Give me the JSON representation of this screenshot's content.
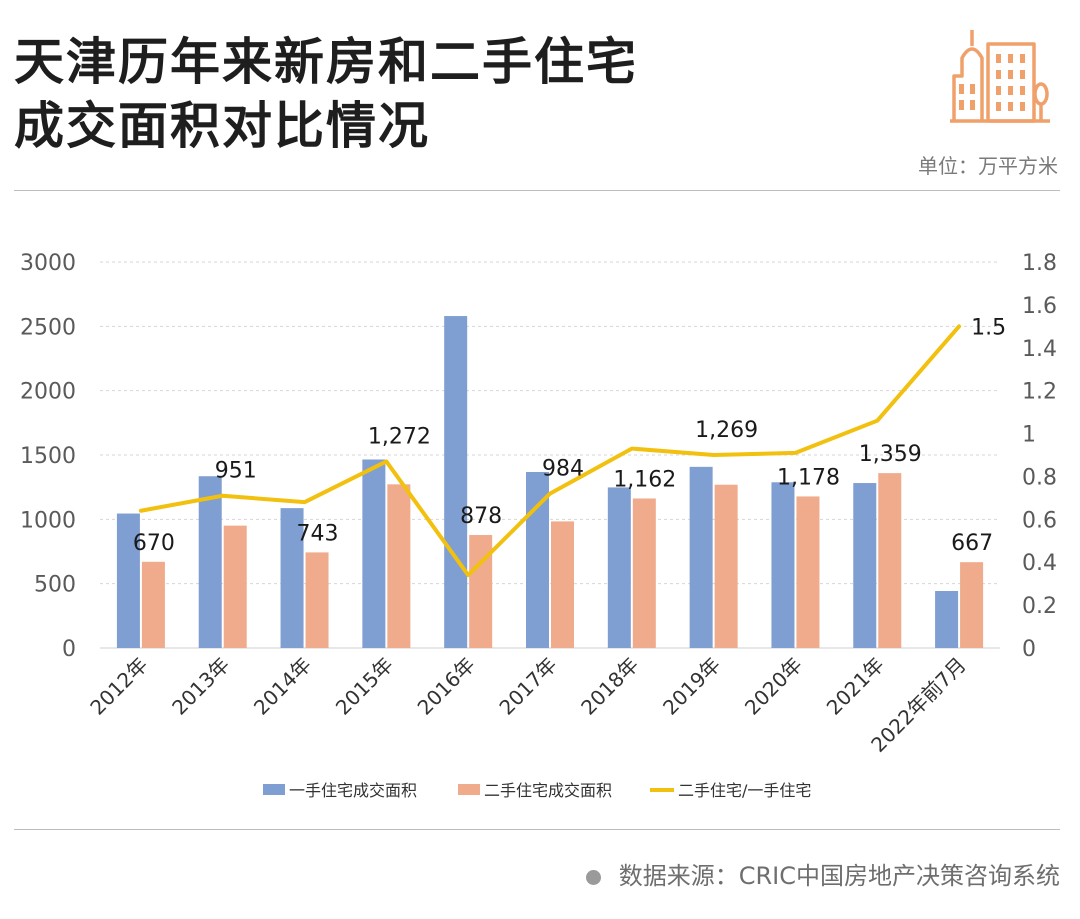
{
  "header": {
    "title_line1": "天津历年来新房和二手住宅",
    "title_line2": "成交面积对比情况",
    "unit": "单位：万平方米"
  },
  "footer": {
    "source": "数据来源：CRIC中国房地产决策咨询系统"
  },
  "colors": {
    "primary": "#7f9ed1",
    "secondary": "#efab8b",
    "ratio": "#f2c00e",
    "logo": "#f0a06a"
  },
  "chart_data": {
    "type": "bar",
    "categories": [
      "2012年",
      "2013年",
      "2014年",
      "2015年",
      "2016年",
      "2017年",
      "2018年",
      "2019年",
      "2020年",
      "2021年",
      "2022年前7月"
    ],
    "series": [
      {
        "name": "一手住宅成交面积",
        "type": "bar",
        "axis": "left",
        "color": "#7f9ed1",
        "values": [
          1045,
          1335,
          1087,
          1465,
          2580,
          1368,
          1248,
          1408,
          1288,
          1282,
          443
        ]
      },
      {
        "name": "二手住宅成交面积",
        "type": "bar",
        "axis": "left",
        "color": "#efab8b",
        "values": [
          670,
          951,
          743,
          1272,
          878,
          984,
          1162,
          1269,
          1178,
          1359,
          667
        ],
        "labels": [
          "670",
          "951",
          "743",
          "1,272",
          "878",
          "984",
          "1,162",
          "1,269",
          "1,178",
          "1,359",
          "667"
        ]
      },
      {
        "name": "二手住宅/一手住宅",
        "type": "line",
        "axis": "right",
        "color": "#f2c00e",
        "values": [
          0.64,
          0.71,
          0.68,
          0.87,
          0.34,
          0.72,
          0.93,
          0.9,
          0.91,
          1.06,
          1.5
        ],
        "end_label": "1.5"
      }
    ],
    "y_left": {
      "min": 0,
      "max": 3000,
      "ticks": [
        "0",
        "500",
        "1000",
        "1500",
        "2000",
        "2500",
        "3000"
      ]
    },
    "y_right": {
      "min": 0,
      "max": 1.8,
      "ticks": [
        "0",
        "0.2",
        "0.4",
        "0.6",
        "0.8",
        "1",
        "1.2",
        "1.4",
        "1.6",
        "1.8"
      ]
    },
    "grid": true,
    "legend_position": "bottom"
  }
}
